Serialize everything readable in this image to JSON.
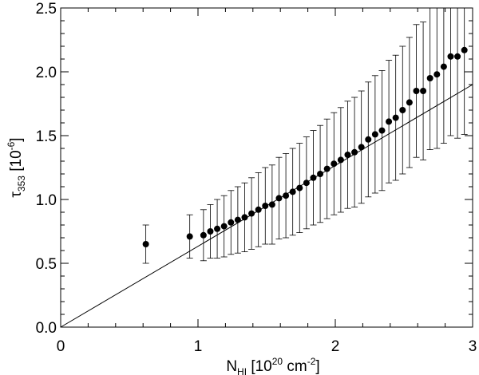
{
  "chart_data": {
    "type": "scatter",
    "title": "",
    "xlabel": {
      "main": "N",
      "sub": "HI",
      "unit_open": " [10",
      "unit_exp": "20",
      "unit_mid": " cm",
      "unit_exp2": "-2",
      "unit_close": "]"
    },
    "ylabel": {
      "main": "τ",
      "sub": "353",
      "unit_open": " [10",
      "unit_exp": "-6",
      "unit_close": "]"
    },
    "xlim": [
      0,
      3
    ],
    "ylim": [
      0,
      2.5
    ],
    "x_ticks": [
      "0",
      "1",
      "2",
      "3"
    ],
    "y_ticks": [
      "0.0",
      "0.5",
      "1.0",
      "1.5",
      "2.0",
      "2.5"
    ],
    "grid": false,
    "series": [
      {
        "style": "points-with-errorbars",
        "x": [
          0.62,
          0.94,
          1.04,
          1.09,
          1.14,
          1.19,
          1.24,
          1.29,
          1.34,
          1.39,
          1.44,
          1.49,
          1.54,
          1.59,
          1.64,
          1.69,
          1.74,
          1.79,
          1.84,
          1.89,
          1.94,
          1.99,
          2.04,
          2.09,
          2.14,
          2.19,
          2.24,
          2.29,
          2.34,
          2.39,
          2.44,
          2.49,
          2.54,
          2.59,
          2.64,
          2.69,
          2.74,
          2.79,
          2.84,
          2.89,
          2.94
        ],
        "y": [
          0.65,
          0.71,
          0.72,
          0.75,
          0.77,
          0.79,
          0.82,
          0.84,
          0.86,
          0.89,
          0.92,
          0.95,
          0.96,
          1.01,
          1.03,
          1.06,
          1.09,
          1.13,
          1.17,
          1.2,
          1.24,
          1.28,
          1.31,
          1.35,
          1.37,
          1.41,
          1.47,
          1.51,
          1.54,
          1.61,
          1.64,
          1.7,
          1.76,
          1.85,
          1.85,
          1.95,
          1.98,
          2.04,
          2.12,
          2.12,
          2.17
        ],
        "yerr": [
          0.15,
          0.17,
          0.2,
          0.21,
          0.23,
          0.24,
          0.25,
          0.26,
          0.27,
          0.28,
          0.29,
          0.3,
          0.31,
          0.32,
          0.33,
          0.34,
          0.35,
          0.36,
          0.37,
          0.38,
          0.39,
          0.4,
          0.41,
          0.42,
          0.43,
          0.44,
          0.45,
          0.46,
          0.47,
          0.48,
          0.49,
          0.5,
          0.51,
          0.52,
          0.54,
          0.56,
          0.58,
          0.6,
          0.62,
          0.64,
          0.66
        ]
      },
      {
        "style": "line",
        "x": [
          0,
          3
        ],
        "y": [
          0,
          1.9
        ]
      }
    ]
  }
}
